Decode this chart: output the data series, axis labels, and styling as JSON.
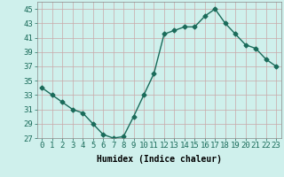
{
  "x": [
    0,
    1,
    2,
    3,
    4,
    5,
    6,
    7,
    8,
    9,
    10,
    11,
    12,
    13,
    14,
    15,
    16,
    17,
    18,
    19,
    20,
    21,
    22,
    23
  ],
  "y": [
    34,
    33,
    32,
    31,
    30.5,
    29,
    27.5,
    27,
    27.2,
    30,
    33,
    36,
    41.5,
    42,
    42.5,
    42.5,
    44,
    45,
    43,
    41.5,
    40,
    39.5,
    38,
    37
  ],
  "line_color": "#1a6b5a",
  "marker": "D",
  "marker_size": 2.5,
  "bg_color": "#cff0ec",
  "grid_color": "#c8a8a8",
  "xlabel": "Humidex (Indice chaleur)",
  "ylim": [
    27,
    46
  ],
  "yticks": [
    27,
    29,
    31,
    33,
    35,
    37,
    39,
    41,
    43,
    45
  ],
  "xlim": [
    -0.5,
    23.5
  ],
  "xticks": [
    0,
    1,
    2,
    3,
    4,
    5,
    6,
    7,
    8,
    9,
    10,
    11,
    12,
    13,
    14,
    15,
    16,
    17,
    18,
    19,
    20,
    21,
    22,
    23
  ],
  "xtick_labels": [
    "0",
    "1",
    "2",
    "3",
    "4",
    "5",
    "6",
    "7",
    "8",
    "9",
    "10",
    "11",
    "12",
    "13",
    "14",
    "15",
    "16",
    "17",
    "18",
    "19",
    "20",
    "21",
    "22",
    "23"
  ],
  "xlabel_fontsize": 7,
  "tick_fontsize": 6.5,
  "line_width": 1.0
}
